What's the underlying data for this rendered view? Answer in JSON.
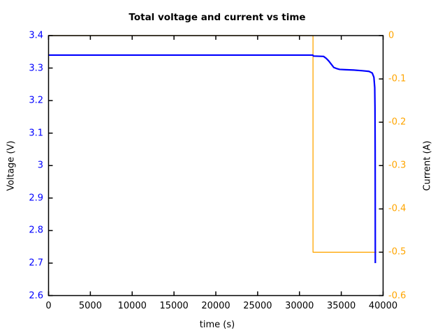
{
  "figure": {
    "background": "#ffffff",
    "frame_color": "#000000"
  },
  "chart_data": {
    "type": "line",
    "title": "Total voltage and current vs time",
    "grid": false,
    "legend": "none",
    "x_axis": {
      "label": "time (s)",
      "range": [
        0,
        40000
      ],
      "tick_values": [
        0,
        5000,
        10000,
        15000,
        20000,
        25000,
        30000,
        35000,
        40000
      ],
      "tick_labels": [
        "0",
        "5000",
        "10000",
        "15000",
        "20000",
        "25000",
        "30000",
        "35000",
        "40000"
      ],
      "color": "#000000"
    },
    "y_axis_left": {
      "label": "Voltage (V)",
      "range": [
        2.6,
        3.4
      ],
      "tick_values": [
        3.4,
        3.3,
        3.2,
        3.1,
        3.0,
        2.9,
        2.8,
        2.7,
        2.6
      ],
      "tick_labels": [
        "3.4",
        "3.3",
        "3.2",
        "3.1",
        "3",
        "2.9",
        "2.8",
        "2.7",
        "2.6"
      ],
      "color": "#0000ff"
    },
    "y_axis_right": {
      "label": "Current (A)",
      "range": [
        -0.6,
        0
      ],
      "tick_values": [
        0,
        -0.1,
        -0.2,
        -0.3,
        -0.4,
        -0.5,
        -0.6
      ],
      "tick_labels": [
        "0",
        "-0.1",
        "-0.2",
        "-0.3",
        "-0.4",
        "-0.5",
        "-0.6"
      ],
      "color": "#ffa500"
    },
    "series": [
      {
        "name": "current",
        "axis": "right",
        "color": "#ffa500",
        "line_width": 1.3,
        "x": [
          0,
          31620,
          31620,
          39200
        ],
        "y": [
          0,
          0,
          -0.5,
          -0.5
        ]
      },
      {
        "name": "voltage",
        "axis": "left",
        "color": "#0000ff",
        "line_width": 2.2,
        "x": [
          0,
          5000,
          10000,
          15000,
          20000,
          25000,
          30000,
          31600,
          31680,
          32880,
          33200,
          33500,
          33800,
          34100,
          34500,
          34800,
          35500,
          36500,
          37500,
          38310,
          38700,
          38900,
          39000,
          39030,
          39050,
          39060,
          39070
        ],
        "y": [
          3.34,
          3.34,
          3.34,
          3.34,
          3.34,
          3.34,
          3.34,
          3.34,
          3.337,
          3.336,
          3.33,
          3.322,
          3.312,
          3.302,
          3.298,
          3.296,
          3.295,
          3.294,
          3.292,
          3.29,
          3.285,
          3.272,
          3.24,
          3.18,
          3.05,
          2.9,
          2.7
        ]
      }
    ]
  }
}
